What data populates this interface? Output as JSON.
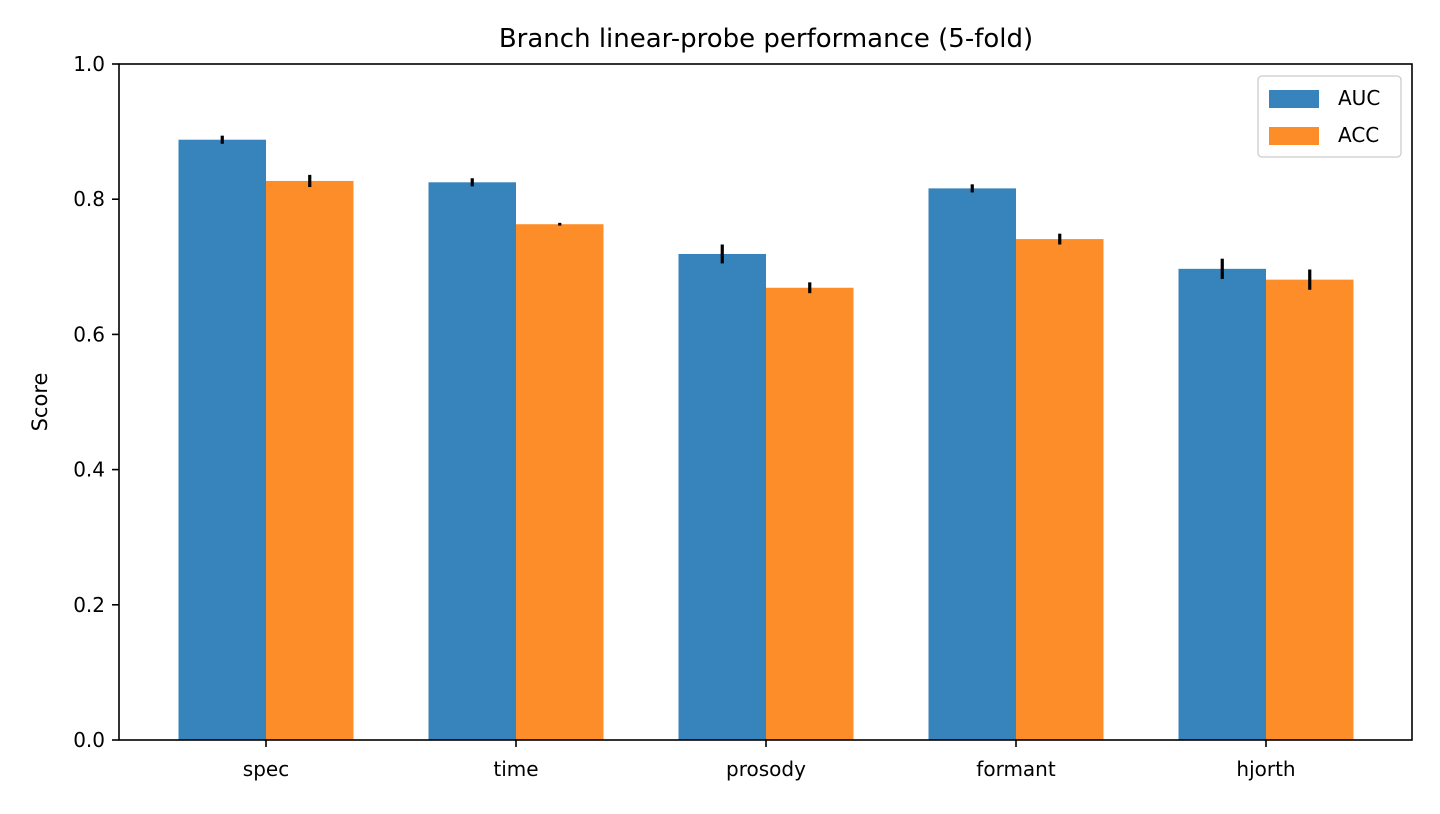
{
  "chart_data": {
    "type": "bar",
    "title": "Branch linear-probe performance (5-fold)",
    "xlabel": "",
    "ylabel": "Score",
    "ylim": [
      0.0,
      1.0
    ],
    "yticks": [
      "0.0",
      "0.2",
      "0.4",
      "0.6",
      "0.8",
      "1.0"
    ],
    "categories": [
      "spec",
      "time",
      "prosody",
      "formant",
      "hjorth"
    ],
    "series": [
      {
        "name": "AUC",
        "color": "#3783bb",
        "values": [
          0.888,
          0.825,
          0.719,
          0.816,
          0.697
        ],
        "errors": [
          0.006,
          0.006,
          0.014,
          0.006,
          0.015
        ]
      },
      {
        "name": "ACC",
        "color": "#fd8d29",
        "values": [
          0.827,
          0.763,
          0.669,
          0.741,
          0.681
        ],
        "errors": [
          0.009,
          0.002,
          0.008,
          0.008,
          0.015
        ]
      }
    ],
    "error_bar_color": "#000000",
    "grid": false,
    "legend_position": "top-right"
  }
}
